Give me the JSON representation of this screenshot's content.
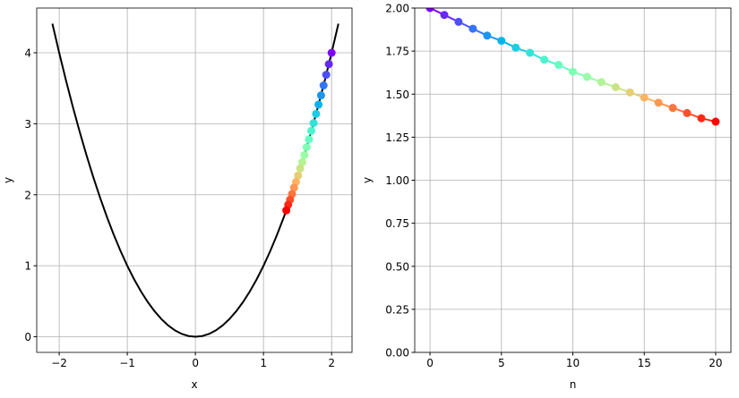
{
  "chart_data": [
    {
      "type": "line",
      "xlabel": "x",
      "ylabel": "y",
      "x": [
        -2.1,
        -2.0,
        -1.9,
        -1.8,
        -1.7,
        -1.6,
        -1.5,
        -1.4,
        -1.3,
        -1.2,
        -1.1,
        -1.0,
        -0.9,
        -0.8,
        -0.7,
        -0.6,
        -0.5,
        -0.4,
        -0.3,
        -0.2,
        -0.1,
        0,
        0.1,
        0.2,
        0.3,
        0.4,
        0.5,
        0.6,
        0.7,
        0.8,
        0.9,
        1.0,
        1.1,
        1.2,
        1.3,
        1.4,
        1.5,
        1.6,
        1.7,
        1.8,
        1.9,
        2.0,
        2.1
      ],
      "series": [
        {
          "color": "#000000",
          "values": [
            4.41,
            4.0,
            3.61,
            3.24,
            2.89,
            2.56,
            2.25,
            1.96,
            1.69,
            1.44,
            1.21,
            1.0,
            0.81,
            0.64,
            0.49,
            0.36,
            0.25,
            0.16,
            0.09,
            0.04,
            0.01,
            0,
            0.01,
            0.04,
            0.09,
            0.16,
            0.25,
            0.36,
            0.49,
            0.64,
            0.81,
            1.0,
            1.21,
            1.44,
            1.69,
            1.96,
            2.25,
            2.56,
            2.89,
            3.24,
            3.61,
            4.0,
            4.41
          ]
        }
      ],
      "points": {
        "x": [
          2.0,
          1.96,
          1.921,
          1.882,
          1.845,
          1.808,
          1.772,
          1.736,
          1.702,
          1.667,
          1.634,
          1.601,
          1.569,
          1.538,
          1.507,
          1.477,
          1.448,
          1.419,
          1.39,
          1.362,
          1.335
        ],
        "values": [
          4.0,
          3.84,
          3.69,
          3.54,
          3.4,
          3.27,
          3.14,
          3.01,
          2.9,
          2.78,
          2.67,
          2.56,
          2.46,
          2.37,
          2.27,
          2.18,
          2.1,
          2.01,
          1.93,
          1.86,
          1.78
        ],
        "colormap": "rainbow",
        "line_color": "#000000"
      },
      "xlim": [
        -2.33,
        2.3
      ],
      "ylim": [
        -0.22,
        4.63
      ],
      "xticks": [
        {
          "value": -2,
          "label": "−2"
        },
        {
          "value": -1,
          "label": "−1"
        },
        0,
        1,
        2
      ],
      "yticks": [
        0,
        1,
        2,
        3,
        4
      ],
      "grid": true
    },
    {
      "type": "line",
      "xlabel": "n",
      "ylabel": "y",
      "x": [
        0,
        1,
        2,
        3,
        4,
        5,
        6,
        7,
        8,
        9,
        10,
        11,
        12,
        13,
        14,
        15,
        16,
        17,
        18,
        19,
        20
      ],
      "points": {
        "x": [
          0,
          1,
          2,
          3,
          4,
          5,
          6,
          7,
          8,
          9,
          10,
          11,
          12,
          13,
          14,
          15,
          16,
          17,
          18,
          19,
          20
        ],
        "values": [
          2.0,
          1.96,
          1.92,
          1.88,
          1.84,
          1.81,
          1.77,
          1.74,
          1.7,
          1.67,
          1.63,
          1.6,
          1.57,
          1.54,
          1.51,
          1.48,
          1.45,
          1.42,
          1.39,
          1.36,
          1.34
        ],
        "colormap": "rainbow"
      },
      "xlim": [
        -1.07,
        21.07
      ],
      "ylim": [
        0,
        2
      ],
      "xticks": [
        0,
        5,
        10,
        15,
        20
      ],
      "yticks": [
        {
          "value": 0,
          "label": "0.00"
        },
        {
          "value": 0.25,
          "label": "0.25"
        },
        {
          "value": 0.5,
          "label": "0.50"
        },
        {
          "value": 0.75,
          "label": "0.75"
        },
        {
          "value": 1,
          "label": "1.00"
        },
        {
          "value": 1.25,
          "label": "1.25"
        },
        {
          "value": 1.5,
          "label": "1.50"
        },
        {
          "value": 1.75,
          "label": "1.75"
        },
        {
          "value": 2,
          "label": "2.00"
        }
      ],
      "grid": true
    }
  ]
}
